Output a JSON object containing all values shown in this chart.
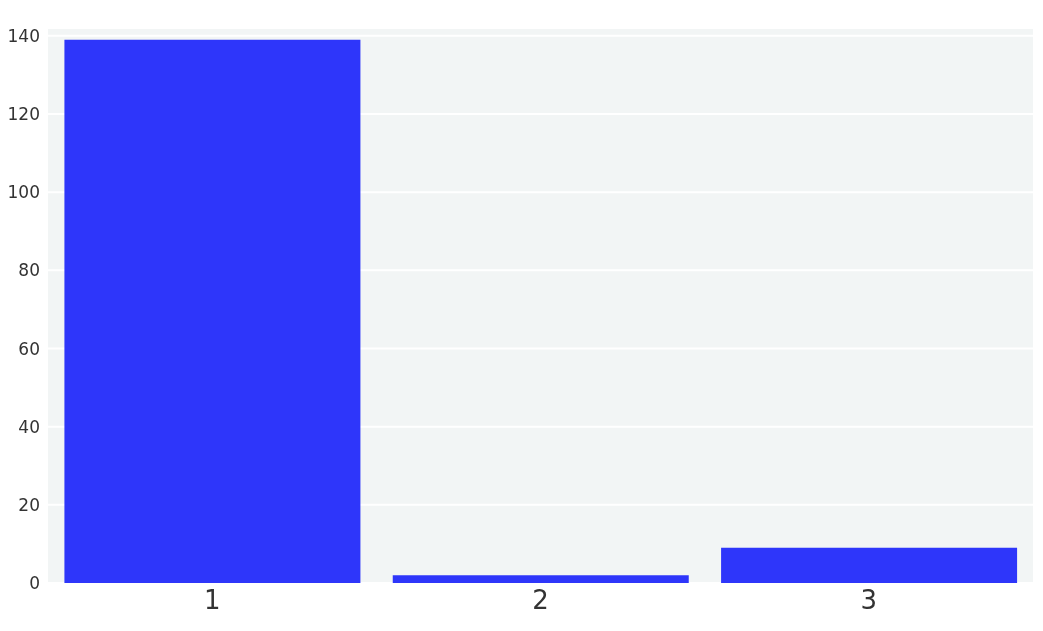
{
  "chart_data": {
    "type": "bar",
    "categories": [
      "1",
      "2",
      "3"
    ],
    "values": [
      139,
      2,
      9
    ],
    "color": "#2e36fa",
    "ylim": [
      0,
      142
    ],
    "yticks": [
      0,
      20,
      40,
      60,
      80,
      100,
      120,
      140
    ],
    "grid": "y"
  }
}
